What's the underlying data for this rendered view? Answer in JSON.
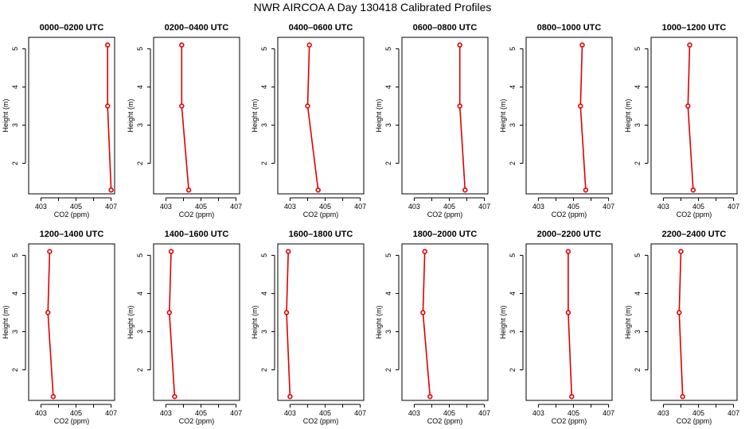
{
  "title": "NWR AIRCOA A  Day 130418  Calibrated Profiles",
  "colors": {
    "series": "#e00000",
    "axis": "#000000",
    "background": "#ffffff"
  },
  "chart_data": [
    {
      "type": "line",
      "title": "0000–0200 UTC",
      "xlabel": "CO2 (ppm)",
      "ylabel": "Height (m)",
      "xlim": [
        402.3,
        407.2
      ],
      "ylim": [
        1.2,
        5.3
      ],
      "xticks": [
        403,
        405,
        407
      ],
      "xminorticks": [
        404,
        406
      ],
      "yticks": [
        2,
        3,
        4,
        5
      ],
      "heights": [
        5.1,
        3.5,
        1.3
      ],
      "values": [
        406.8,
        406.8,
        407.0
      ],
      "marker": "open-circle",
      "color": "#e00000"
    },
    {
      "type": "line",
      "title": "0200–0400 UTC",
      "xlabel": "CO2 (ppm)",
      "ylabel": "Height (m)",
      "xlim": [
        402.3,
        407.2
      ],
      "ylim": [
        1.2,
        5.3
      ],
      "xticks": [
        403,
        405,
        407
      ],
      "xminorticks": [
        404,
        406
      ],
      "yticks": [
        2,
        3,
        4,
        5
      ],
      "heights": [
        5.1,
        3.5,
        1.3
      ],
      "values": [
        403.9,
        403.9,
        404.3
      ],
      "marker": "open-circle",
      "color": "#e00000"
    },
    {
      "type": "line",
      "title": "0400–0600 UTC",
      "xlabel": "CO2 (ppm)",
      "ylabel": "Height (m)",
      "xlim": [
        402.3,
        407.2
      ],
      "ylim": [
        1.2,
        5.3
      ],
      "xticks": [
        403,
        405,
        407
      ],
      "xminorticks": [
        404,
        406
      ],
      "yticks": [
        2,
        3,
        4,
        5
      ],
      "heights": [
        5.1,
        3.5,
        1.3
      ],
      "values": [
        404.1,
        404.0,
        404.6
      ],
      "marker": "open-circle",
      "color": "#e00000"
    },
    {
      "type": "line",
      "title": "0600–0800 UTC",
      "xlabel": "CO2 (ppm)",
      "ylabel": "Height (m)",
      "xlim": [
        402.3,
        407.2
      ],
      "ylim": [
        1.2,
        5.3
      ],
      "xticks": [
        403,
        405,
        407
      ],
      "xminorticks": [
        404,
        406
      ],
      "yticks": [
        2,
        3,
        4,
        5
      ],
      "heights": [
        5.1,
        3.5,
        1.3
      ],
      "values": [
        405.6,
        405.6,
        405.9
      ],
      "marker": "open-circle",
      "color": "#e00000"
    },
    {
      "type": "line",
      "title": "0800–1000 UTC",
      "xlabel": "CO2 (ppm)",
      "ylabel": "Height (m)",
      "xlim": [
        402.3,
        407.2
      ],
      "ylim": [
        1.2,
        5.3
      ],
      "xticks": [
        403,
        405,
        407
      ],
      "xminorticks": [
        404,
        406
      ],
      "yticks": [
        2,
        3,
        4,
        5
      ],
      "heights": [
        5.1,
        3.5,
        1.3
      ],
      "values": [
        405.5,
        405.4,
        405.7
      ],
      "marker": "open-circle",
      "color": "#e00000"
    },
    {
      "type": "line",
      "title": "1000–1200 UTC",
      "xlabel": "CO2 (ppm)",
      "ylabel": "Height (m)",
      "xlim": [
        402.3,
        407.2
      ],
      "ylim": [
        1.2,
        5.3
      ],
      "xticks": [
        403,
        405,
        407
      ],
      "xminorticks": [
        404,
        406
      ],
      "yticks": [
        2,
        3,
        4,
        5
      ],
      "heights": [
        5.1,
        3.5,
        1.3
      ],
      "values": [
        404.5,
        404.4,
        404.7
      ],
      "marker": "open-circle",
      "color": "#e00000"
    },
    {
      "type": "line",
      "title": "1200–1400 UTC",
      "xlabel": "CO2 (ppm)",
      "ylabel": "Height (m)",
      "xlim": [
        402.3,
        407.2
      ],
      "ylim": [
        1.2,
        5.3
      ],
      "xticks": [
        403,
        405,
        407
      ],
      "xminorticks": [
        404,
        406
      ],
      "yticks": [
        2,
        3,
        4,
        5
      ],
      "heights": [
        5.1,
        3.5,
        1.3
      ],
      "values": [
        403.5,
        403.4,
        403.7
      ],
      "marker": "open-circle",
      "color": "#e00000"
    },
    {
      "type": "line",
      "title": "1400–1600 UTC",
      "xlabel": "CO2 (ppm)",
      "ylabel": "Height (m)",
      "xlim": [
        402.3,
        407.2
      ],
      "ylim": [
        1.2,
        5.3
      ],
      "xticks": [
        403,
        405,
        407
      ],
      "xminorticks": [
        404,
        406
      ],
      "yticks": [
        2,
        3,
        4,
        5
      ],
      "heights": [
        5.1,
        3.5,
        1.3
      ],
      "values": [
        403.3,
        403.2,
        403.5
      ],
      "marker": "open-circle",
      "color": "#e00000"
    },
    {
      "type": "line",
      "title": "1600–1800 UTC",
      "xlabel": "CO2 (ppm)",
      "ylabel": "Height (m)",
      "xlim": [
        402.3,
        407.2
      ],
      "ylim": [
        1.2,
        5.3
      ],
      "xticks": [
        403,
        405,
        407
      ],
      "xminorticks": [
        404,
        406
      ],
      "yticks": [
        2,
        3,
        4,
        5
      ],
      "heights": [
        5.1,
        3.5,
        1.3
      ],
      "values": [
        402.9,
        402.8,
        403.0
      ],
      "marker": "open-circle",
      "color": "#e00000"
    },
    {
      "type": "line",
      "title": "1800–2000 UTC",
      "xlabel": "CO2 (ppm)",
      "ylabel": "Height (m)",
      "xlim": [
        402.3,
        407.2
      ],
      "ylim": [
        1.2,
        5.3
      ],
      "xticks": [
        403,
        405,
        407
      ],
      "xminorticks": [
        404,
        406
      ],
      "yticks": [
        2,
        3,
        4,
        5
      ],
      "heights": [
        5.1,
        3.5,
        1.3
      ],
      "values": [
        403.6,
        403.5,
        403.9
      ],
      "marker": "open-circle",
      "color": "#e00000"
    },
    {
      "type": "line",
      "title": "2000–2200 UTC",
      "xlabel": "CO2 (ppm)",
      "ylabel": "Height (m)",
      "xlim": [
        402.3,
        407.2
      ],
      "ylim": [
        1.2,
        5.3
      ],
      "xticks": [
        403,
        405,
        407
      ],
      "xminorticks": [
        404,
        406
      ],
      "yticks": [
        2,
        3,
        4,
        5
      ],
      "heights": [
        5.1,
        3.5,
        1.3
      ],
      "values": [
        404.7,
        404.7,
        404.9
      ],
      "marker": "open-circle",
      "color": "#e00000"
    },
    {
      "type": "line",
      "title": "2200–2400 UTC",
      "xlabel": "CO2 (ppm)",
      "ylabel": "Height (m)",
      "xlim": [
        402.3,
        407.2
      ],
      "ylim": [
        1.2,
        5.3
      ],
      "xticks": [
        403,
        405,
        407
      ],
      "xminorticks": [
        404,
        406
      ],
      "yticks": [
        2,
        3,
        4,
        5
      ],
      "heights": [
        5.1,
        3.5,
        1.3
      ],
      "values": [
        404.0,
        403.9,
        404.1
      ],
      "marker": "open-circle",
      "color": "#e00000"
    }
  ]
}
